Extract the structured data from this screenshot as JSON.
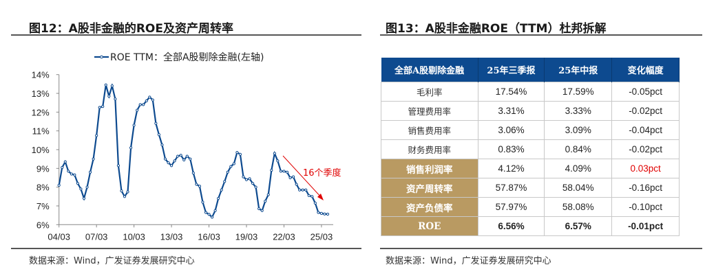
{
  "left": {
    "title": "图12：A股非金融的ROE及资产周转率",
    "source": "数据来源：Wind，广发证券发展研究中心"
  },
  "right": {
    "title": "图13：A股非金融ROE（TTM）杜邦拆解",
    "source": "数据来源：Wind，广发证券发展研究中心",
    "table": {
      "headers": [
        "全部A股剔除金融",
        "25年三季报",
        "25年中报",
        "变化幅度"
      ],
      "rows": [
        {
          "label": "毛利率",
          "q3": "17.54%",
          "h1": "17.59%",
          "change": "-0.05pct",
          "highlight": false
        },
        {
          "label": "管理费用率",
          "q3": "3.31%",
          "h1": "3.33%",
          "change": "-0.02pct",
          "highlight": false
        },
        {
          "label": "销售费用率",
          "q3": "3.06%",
          "h1": "3.09%",
          "change": "-0.04pct",
          "highlight": false
        },
        {
          "label": "财务费用率",
          "q3": "0.83%",
          "h1": "0.84%",
          "change": "-0.02pct",
          "highlight": false
        },
        {
          "label": "销售利润率",
          "q3": "4.12%",
          "h1": "4.09%",
          "change": "0.03pct",
          "highlight": true,
          "change_color": "#e00000"
        },
        {
          "label": "资产周转率",
          "q3": "57.87%",
          "h1": "58.04%",
          "change": "-0.16pct",
          "highlight": true
        },
        {
          "label": "资产负债率",
          "q3": "57.97%",
          "h1": "58.08%",
          "change": "-0.10pct",
          "highlight": true
        },
        {
          "label": "ROE",
          "q3": "6.56%",
          "h1": "6.57%",
          "change": "-0.01pct",
          "highlight": true,
          "bold": true
        }
      ]
    },
    "colors": {
      "header": "#0d4a8f",
      "highlight": "#b99a62"
    }
  },
  "chart_data": {
    "type": "line",
    "legend": "ROE TTM：全部A股剔除金融(左轴)",
    "legend_position": "top",
    "series_color": "#0d4a8f",
    "x_tick_labels": [
      "04/03",
      "07/03",
      "10/03",
      "13/03",
      "16/03",
      "19/03",
      "22/03",
      "25/03"
    ],
    "y_tick_labels": [
      "6%",
      "7%",
      "8%",
      "9%",
      "10%",
      "11%",
      "12%",
      "13%",
      "14%"
    ],
    "ylim": [
      6,
      14
    ],
    "grid": false,
    "x_start": "2004Q1",
    "frequency": "quarterly",
    "annotation": {
      "text": "16个季度",
      "color": "#e00000"
    },
    "series": [
      {
        "name": "ROE TTM：全部A股剔除金融(左轴)",
        "values": [
          8.1,
          9.05,
          9.35,
          8.85,
          8.7,
          8.65,
          8.2,
          7.9,
          7.4,
          8.0,
          8.8,
          9.5,
          10.75,
          12.25,
          12.3,
          13.45,
          12.85,
          13.4,
          12.7,
          9.15,
          7.8,
          7.5,
          7.75,
          10.1,
          11.3,
          12.1,
          12.4,
          12.4,
          12.6,
          12.8,
          12.65,
          11.4,
          10.8,
          10.25,
          9.5,
          9.3,
          9.15,
          9.4,
          9.65,
          9.7,
          9.45,
          9.65,
          9.5,
          8.75,
          8.15,
          8.05,
          7.2,
          6.65,
          6.55,
          6.4,
          6.75,
          7.4,
          7.85,
          8.3,
          8.8,
          9.1,
          9.25,
          9.85,
          9.75,
          8.55,
          8.4,
          8.45,
          8.2,
          8.0,
          6.85,
          6.75,
          7.25,
          7.6,
          8.9,
          9.8,
          9.4,
          8.85,
          8.85,
          8.8,
          8.5,
          8.55,
          8.15,
          7.85,
          7.85,
          7.85,
          7.55,
          7.5,
          7.15,
          6.65,
          6.6,
          6.57,
          6.56
        ]
      }
    ]
  }
}
